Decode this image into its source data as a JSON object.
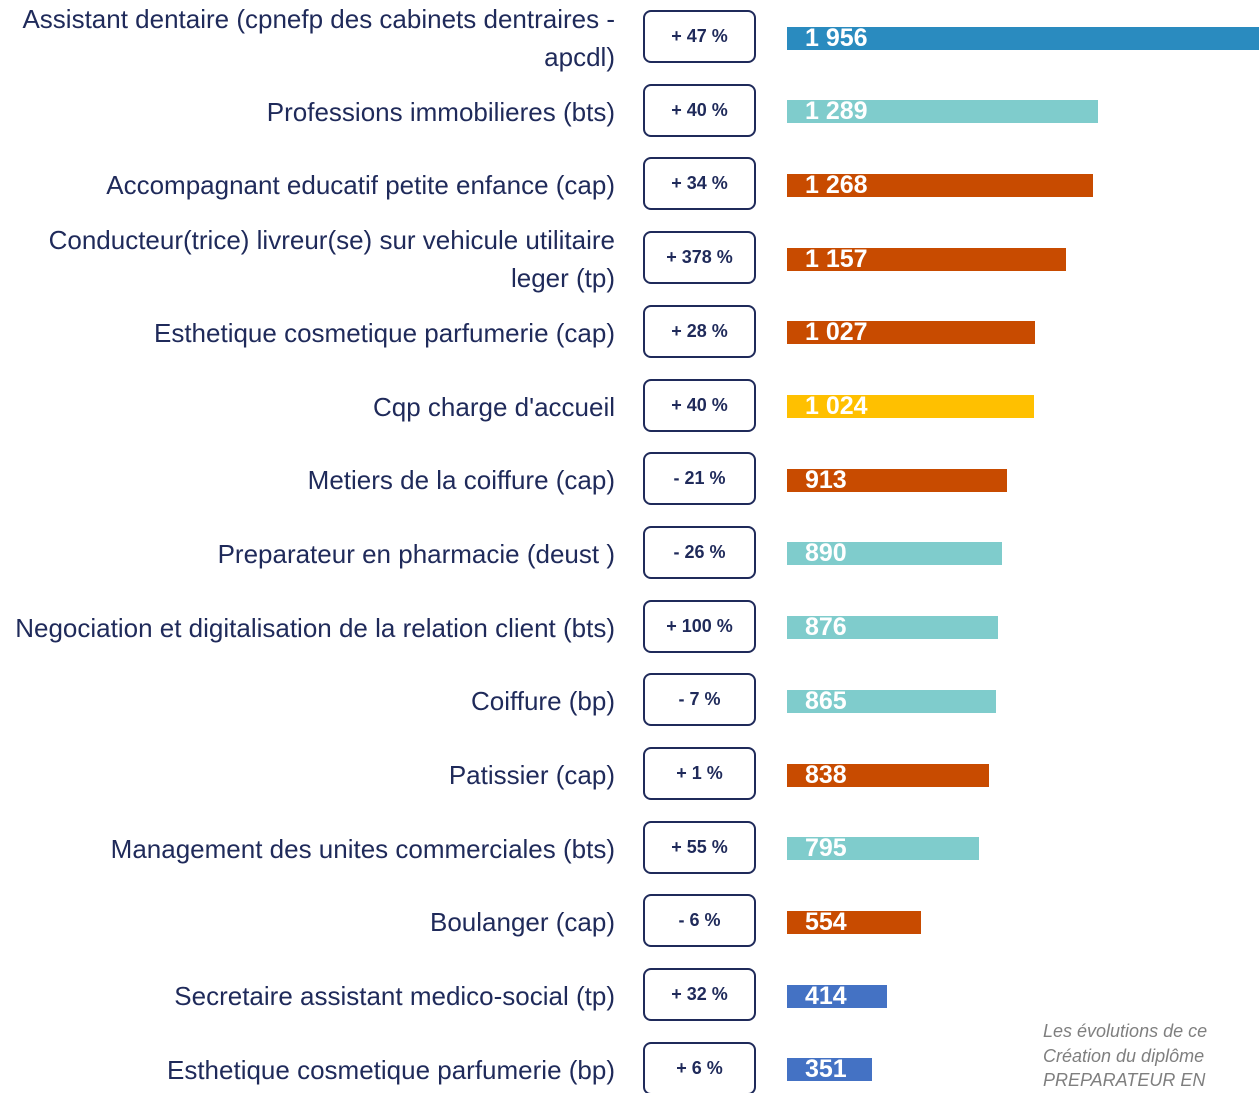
{
  "chart_data": {
    "type": "bar",
    "categories": [
      "Assistant dentaire (cpnefp des cabinets dentraires - apcdl)",
      "Professions immobilieres (bts)",
      "Accompagnant educatif petite enfance (cap)",
      "Conducteur(trice) livreur(se) sur vehicule utilitaire leger (tp)",
      "Esthetique cosmetique parfumerie (cap)",
      "Cqp charge d'accueil",
      "Metiers de la coiffure (cap)",
      "Preparateur en pharmacie (deust )",
      "Negociation et digitalisation de la relation client (bts)",
      "Coiffure (bp)",
      "Patissier (cap)",
      "Management des unites commerciales (bts)",
      "Boulanger (cap)",
      "Secretaire assistant medico-social (tp)",
      "Esthetique cosmetique parfumerie (bp)"
    ],
    "values": [
      1956,
      1289,
      1268,
      1157,
      1027,
      1024,
      913,
      890,
      876,
      865,
      838,
      795,
      554,
      414,
      351
    ],
    "value_labels": [
      "1 956",
      "1 289",
      "1 268",
      "1 157",
      "1 027",
      "1 024",
      "913",
      "890",
      "876",
      "865",
      "838",
      "795",
      "554",
      "414",
      "351"
    ],
    "colors": [
      "#2a8bbf",
      "#7fcccc",
      "#c84b00",
      "#c84b00",
      "#c84b00",
      "#ffc000",
      "#c84b00",
      "#7fcccc",
      "#7fcccc",
      "#7fcccc",
      "#c84b00",
      "#7fcccc",
      "#c84b00",
      "#4472c4",
      "#4472c4"
    ],
    "changes": [
      "+ 47 %",
      "+ 40 %",
      "+ 34 %",
      "+ 378 %",
      "+ 28 %",
      "+ 40 %",
      "- 21 %",
      "- 26 %",
      "+ 100 %",
      "- 7 %",
      "+ 1 %",
      "+ 55 %",
      "- 6 %",
      "+ 32 %",
      "+ 6 %"
    ],
    "note": [
      "Les évolutions de ce",
      "Création du diplôme",
      "PREPARATEUR EN"
    ]
  }
}
